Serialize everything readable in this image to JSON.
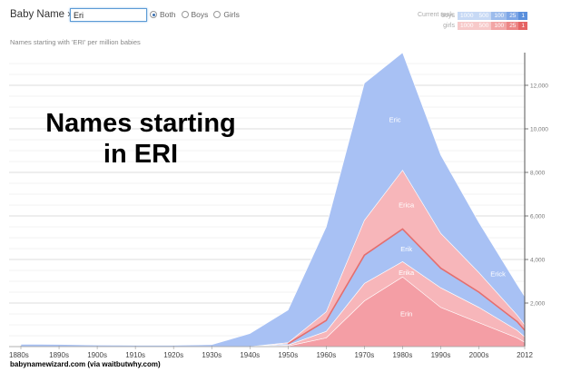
{
  "header": {
    "brand": "Baby Name ›",
    "search_value": "Eri",
    "radios": [
      {
        "label": "Both",
        "selected": true
      },
      {
        "label": "Boys",
        "selected": false
      },
      {
        "label": "Girls",
        "selected": false
      }
    ],
    "rank_title": "Current rank:",
    "rank_rows": [
      {
        "label": "boys",
        "cells": [
          "1000",
          "500",
          "100",
          "25",
          "1"
        ],
        "colors": [
          "#c7d9f5",
          "#c7d9f5",
          "#9dbcec",
          "#7ea6e6",
          "#5a8fdc"
        ]
      },
      {
        "label": "girls",
        "cells": [
          "1000",
          "500",
          "100",
          "25",
          "1"
        ],
        "colors": [
          "#f7c9c9",
          "#f7c9c9",
          "#f2a5a5",
          "#ec8686",
          "#e56464"
        ]
      }
    ]
  },
  "subtitle": "Names starting with 'ERI' per million babies",
  "headline": [
    "Names starting",
    "in ERI"
  ],
  "credit": "babynamewizard.com (via waitbutwhy.com)",
  "colors": {
    "boys": "#a8c1f4",
    "girls": "#f7b6ba",
    "girls_dark": "#f49ea5",
    "erik_line": "#e46e6e",
    "grid": "#e6e6e6"
  },
  "chart_data": {
    "type": "area",
    "title": "",
    "ylim": [
      0,
      13500
    ],
    "y_ticks": [
      "2,000",
      "4,000",
      "6,000",
      "8,000",
      "10,000",
      "12,000"
    ],
    "y_tick_values": [
      2000,
      4000,
      6000,
      8000,
      10000,
      12000
    ],
    "x_ticks": [
      "1880s",
      "1890s",
      "1900s",
      "1910s",
      "1920s",
      "1930s",
      "1940s",
      "1950s",
      "1960s",
      "1970s",
      "1980s",
      "1990s",
      "2000s",
      "2012"
    ],
    "x_tick_values": [
      1880,
      1890,
      1900,
      1910,
      1920,
      1930,
      1940,
      1950,
      1960,
      1970,
      1980,
      1990,
      2000,
      2012
    ],
    "x": [
      1880,
      1890,
      1900,
      1910,
      1920,
      1930,
      1940,
      1950,
      1960,
      1970,
      1980,
      1990,
      2000,
      2010,
      2012
    ],
    "series": [
      {
        "name": "Erin",
        "sex": "girls",
        "values": [
          0,
          0,
          0,
          0,
          0,
          0,
          0,
          30,
          400,
          2100,
          3200,
          1800,
          1100,
          400,
          200
        ]
      },
      {
        "name": "Erika",
        "sex": "girls",
        "values": [
          0,
          0,
          0,
          0,
          0,
          0,
          0,
          40,
          300,
          800,
          700,
          900,
          700,
          350,
          250
        ]
      },
      {
        "name": "Erik",
        "sex": "boys",
        "values": [
          0,
          0,
          0,
          0,
          0,
          0,
          0,
          60,
          500,
          1300,
          1500,
          900,
          700,
          400,
          300
        ]
      },
      {
        "name": "Erica",
        "sex": "girls",
        "values": [
          0,
          0,
          0,
          0,
          0,
          0,
          0,
          50,
          400,
          1600,
          2700,
          1600,
          900,
          300,
          250
        ]
      },
      {
        "name": "Eric",
        "sex": "boys",
        "values": [
          110,
          100,
          70,
          60,
          60,
          90,
          600,
          1500,
          3900,
          6300,
          5400,
          3600,
          2300,
          1400,
          1300
        ]
      }
    ],
    "labels": [
      {
        "name": "Eric",
        "year": 1978
      },
      {
        "name": "Erica",
        "year": 1981
      },
      {
        "name": "Erik",
        "year": 1981
      },
      {
        "name": "Erika",
        "year": 1981
      },
      {
        "name": "Erin",
        "year": 1981
      },
      {
        "name": "Erick",
        "year": 2005
      }
    ]
  }
}
